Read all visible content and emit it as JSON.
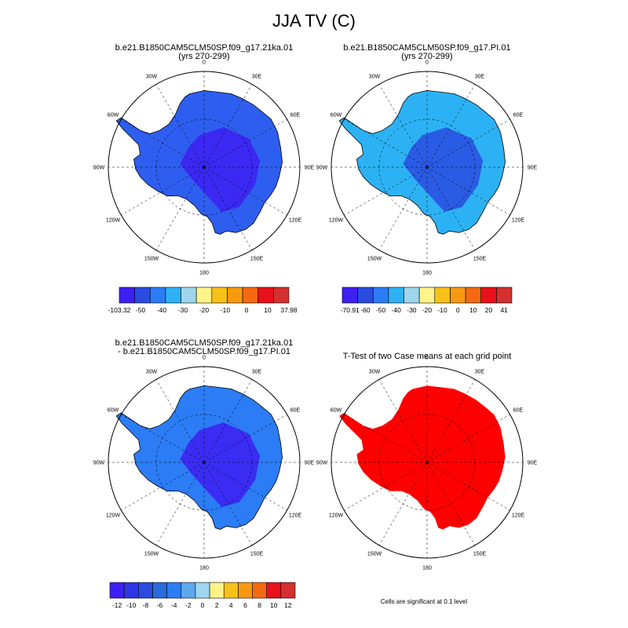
{
  "main_title": "JJA TV (C)",
  "panels": [
    {
      "title_line1": "b.e21.B1850CAM5CLM50SP.f09_g17.21ka.01",
      "title_line2": "(yrs 270-299)"
    },
    {
      "title_line1": "b.e21.B1850CAM5CLM50SP.f09_g17.PI.01",
      "title_line2": "(yrs 270-299)"
    },
    {
      "title_line1": "b.e21.B1850CAM5CLM50SP.f09_g17.21ka.01",
      "title_line2": "- b.e21.B1850CAM5CLM50SP.f09_g17.PI.01"
    },
    {
      "title_line1": "T-Test of two Case means at each grid point",
      "title_line2": ""
    }
  ],
  "lon_labels": [
    "0",
    "30E",
    "60E",
    "90E",
    "120E",
    "150E",
    "180",
    "150W",
    "120W",
    "90W",
    "60W",
    "30W"
  ],
  "colorbars": [
    {
      "colors": [
        "#3d1ff2",
        "#2a4be0",
        "#2b7cf5",
        "#2cb2f4",
        "#9fd6ee",
        "#fff48a",
        "#f7c11a",
        "#f79a11",
        "#f56a10",
        "#e8101b",
        "#d3302e"
      ],
      "labels": [
        "-103.32",
        "-50",
        "-40",
        "-30",
        "-20",
        "-10",
        "0",
        "10",
        "37.98"
      ]
    },
    {
      "colors": [
        "#3d1ff2",
        "#2a4be0",
        "#2b7cf5",
        "#2cb2f4",
        "#9fd6ee",
        "#fff48a",
        "#f7c11a",
        "#f79a11",
        "#f56a10",
        "#e8101b",
        "#d3302e"
      ],
      "labels": [
        "-70.91",
        "-60",
        "-50",
        "-40",
        "-30",
        "-20",
        "-10",
        "0",
        "10",
        "20",
        "41"
      ]
    },
    {
      "colors": [
        "#3d1ff2",
        "#2e35e6",
        "#2a4be0",
        "#2a6ad9",
        "#2b7cf5",
        "#5ca8ee",
        "#9fd6ee",
        "#fff48a",
        "#f7c11a",
        "#f79a11",
        "#f56a10",
        "#e8101b",
        "#d3302e"
      ],
      "labels": [
        "-12",
        "-10",
        "-8",
        "-6",
        "-4",
        "-2",
        "0",
        "2",
        "4",
        "6",
        "8",
        "10",
        "12"
      ]
    }
  ],
  "footnote": "Cells are significant at 0.1 level",
  "fill_colors": {
    "panel1": "#2e5ef0",
    "panel1_dark": "#3d1ff2",
    "panel2": "#2cb2f4",
    "panel2_dark": "#2a4be0",
    "panel3": "#2b7cf5",
    "panel3_dark": "#3d1ff2",
    "panel4": "#ff0000"
  }
}
